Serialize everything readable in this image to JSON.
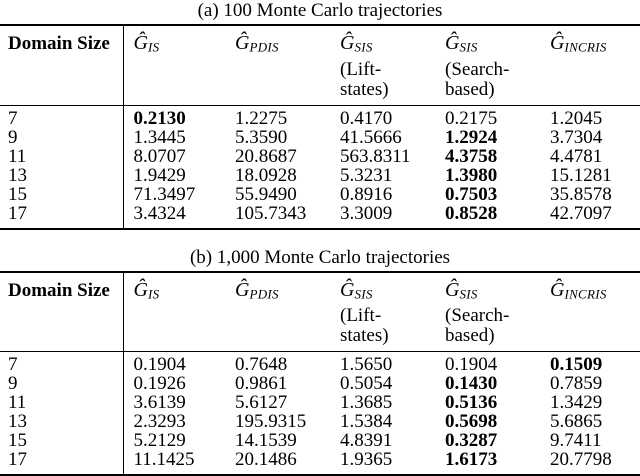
{
  "page": {
    "background_color": "#ffffff",
    "text_color": "#000000",
    "rule_color": "#000000"
  },
  "tables": [
    {
      "caption": "(a) 100 Monte Carlo trajectories",
      "header": {
        "domain_col": "Domain Size",
        "cols": [
          {
            "sym": "Ĝ",
            "sub": "IS",
            "note": ""
          },
          {
            "sym": "Ĝ",
            "sub": "PDIS",
            "note": ""
          },
          {
            "sym": "Ĝ",
            "sub": "SIS",
            "note": "(Lift-\nstates)"
          },
          {
            "sym": "Ĝ",
            "sub": "SIS",
            "note": "(Search-\nbased)"
          },
          {
            "sym": "Ĝ",
            "sub": "INCRIS",
            "note": ""
          }
        ]
      },
      "rows": [
        {
          "domain": "7",
          "cells": [
            {
              "v": "0.2130",
              "b": true
            },
            {
              "v": "1.2275",
              "b": false
            },
            {
              "v": "0.4170",
              "b": false
            },
            {
              "v": "0.2175",
              "b": false
            },
            {
              "v": "1.2045",
              "b": false
            }
          ]
        },
        {
          "domain": "9",
          "cells": [
            {
              "v": "1.3445",
              "b": false
            },
            {
              "v": "5.3590",
              "b": false
            },
            {
              "v": "41.5666",
              "b": false
            },
            {
              "v": "1.2924",
              "b": true
            },
            {
              "v": "3.7304",
              "b": false
            }
          ]
        },
        {
          "domain": "11",
          "cells": [
            {
              "v": "8.0707",
              "b": false
            },
            {
              "v": "20.8687",
              "b": false
            },
            {
              "v": "563.8311",
              "b": false
            },
            {
              "v": "4.3758",
              "b": true
            },
            {
              "v": "4.4781",
              "b": false
            }
          ]
        },
        {
          "domain": "13",
          "cells": [
            {
              "v": "1.9429",
              "b": false
            },
            {
              "v": "18.0928",
              "b": false
            },
            {
              "v": "5.3231",
              "b": false
            },
            {
              "v": "1.3980",
              "b": true
            },
            {
              "v": "15.1281",
              "b": false
            }
          ]
        },
        {
          "domain": "15",
          "cells": [
            {
              "v": "71.3497",
              "b": false
            },
            {
              "v": "55.9490",
              "b": false
            },
            {
              "v": "0.8916",
              "b": false
            },
            {
              "v": "0.7503",
              "b": true
            },
            {
              "v": "35.8578",
              "b": false
            }
          ]
        },
        {
          "domain": "17",
          "cells": [
            {
              "v": "3.4324",
              "b": false
            },
            {
              "v": "105.7343",
              "b": false
            },
            {
              "v": "3.3009",
              "b": false
            },
            {
              "v": "0.8528",
              "b": true
            },
            {
              "v": "42.7097",
              "b": false
            }
          ]
        }
      ]
    },
    {
      "caption": "(b) 1,000 Monte Carlo trajectories",
      "header": {
        "domain_col": "Domain Size",
        "cols": [
          {
            "sym": "Ĝ",
            "sub": "IS",
            "note": ""
          },
          {
            "sym": "Ĝ",
            "sub": "PDIS",
            "note": ""
          },
          {
            "sym": "Ĝ",
            "sub": "SIS",
            "note": "(Lift-\nstates)"
          },
          {
            "sym": "Ĝ",
            "sub": "SIS",
            "note": "(Search-\nbased)"
          },
          {
            "sym": "Ĝ",
            "sub": "INCRIS",
            "note": ""
          }
        ]
      },
      "rows": [
        {
          "domain": "7",
          "cells": [
            {
              "v": "0.1904",
              "b": false
            },
            {
              "v": "0.7648",
              "b": false
            },
            {
              "v": "1.5650",
              "b": false
            },
            {
              "v": "0.1904",
              "b": false
            },
            {
              "v": "0.1509",
              "b": true
            }
          ]
        },
        {
          "domain": "9",
          "cells": [
            {
              "v": "0.1926",
              "b": false
            },
            {
              "v": "0.9861",
              "b": false
            },
            {
              "v": "0.5054",
              "b": false
            },
            {
              "v": "0.1430",
              "b": true
            },
            {
              "v": "0.7859",
              "b": false
            }
          ]
        },
        {
          "domain": "11",
          "cells": [
            {
              "v": "3.6139",
              "b": false
            },
            {
              "v": "5.6127",
              "b": false
            },
            {
              "v": "1.3685",
              "b": false
            },
            {
              "v": "0.5136",
              "b": true
            },
            {
              "v": "1.3429",
              "b": false
            }
          ]
        },
        {
          "domain": "13",
          "cells": [
            {
              "v": "2.3293",
              "b": false
            },
            {
              "v": "195.9315",
              "b": false
            },
            {
              "v": "1.5384",
              "b": false
            },
            {
              "v": "0.5698",
              "b": true
            },
            {
              "v": "5.6865",
              "b": false
            }
          ]
        },
        {
          "domain": "15",
          "cells": [
            {
              "v": "5.2129",
              "b": false
            },
            {
              "v": "14.1539",
              "b": false
            },
            {
              "v": "4.8391",
              "b": false
            },
            {
              "v": "0.3287",
              "b": true
            },
            {
              "v": "9.7411",
              "b": false
            }
          ]
        },
        {
          "domain": "17",
          "cells": [
            {
              "v": "11.1425",
              "b": false
            },
            {
              "v": "20.1486",
              "b": false
            },
            {
              "v": "1.9365",
              "b": false
            },
            {
              "v": "1.6173",
              "b": true
            },
            {
              "v": "20.7798",
              "b": false
            }
          ]
        }
      ]
    }
  ]
}
